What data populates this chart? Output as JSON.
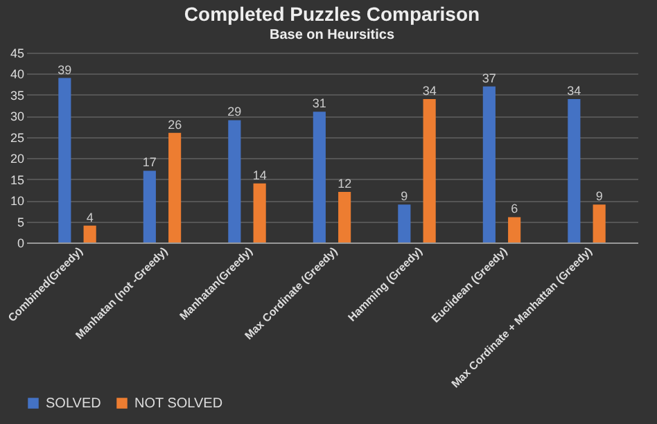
{
  "chart_data": {
    "type": "bar",
    "title": "Completed Puzzles Comparison",
    "subtitle": "Base on Heursitics",
    "categories": [
      "Combined(Greedy)",
      "Manhatan (not -Greedy)",
      "Manhatan(Greedy)",
      "Max Cordinate (Greedy)",
      "Hamming (Greedy)",
      "Euclidean (Greedy)",
      "Max Cordinate + Manhattan (Greedy)"
    ],
    "series": [
      {
        "name": "SOLVED",
        "color": "#4472c4",
        "values": [
          39,
          17,
          29,
          31,
          9,
          37,
          34
        ]
      },
      {
        "name": "NOT SOLVED",
        "color": "#ed7d31",
        "values": [
          4,
          26,
          14,
          12,
          34,
          6,
          9
        ]
      }
    ],
    "ylim": [
      0,
      45
    ],
    "yticks": [
      0,
      5,
      10,
      15,
      20,
      25,
      30,
      35,
      40,
      45
    ],
    "grid": "y",
    "legend": "bottom",
    "data_labels": true
  }
}
